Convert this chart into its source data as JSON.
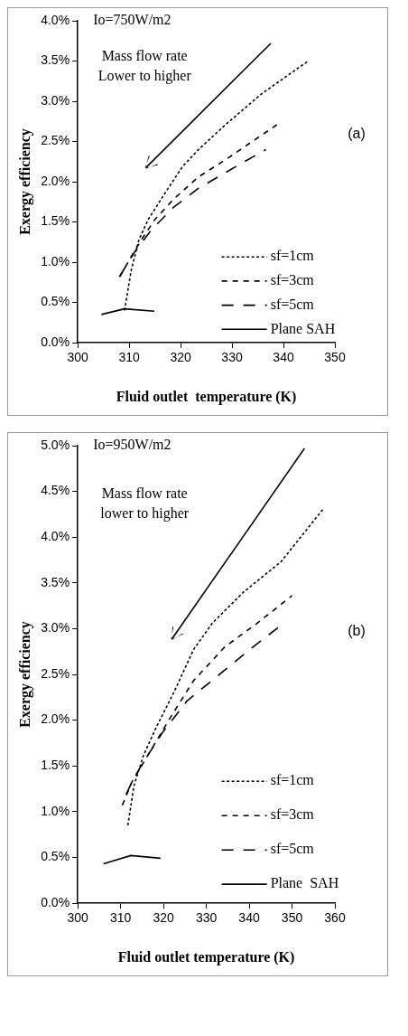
{
  "chart_data": [
    {
      "type": "line",
      "xlabel": "Fluid outlet  temperature (K)",
      "ylabel": "Exergy efficiency",
      "annotations": [
        "Io=750W/m2",
        "Mass flow rate\nLower to higher",
        "(a)"
      ],
      "xlim": [
        300,
        350
      ],
      "xticks": [
        300,
        310,
        320,
        330,
        340,
        350
      ],
      "ylim": [
        0,
        4
      ],
      "yticks": [
        {
          "value": 0,
          "label": "0.0%"
        },
        {
          "value": 0.5,
          "label": "0.5%"
        },
        {
          "value": 1,
          "label": "1.0%"
        },
        {
          "value": 1.5,
          "label": "1.5%"
        },
        {
          "value": 2,
          "label": "2.0%"
        },
        {
          "value": 2.5,
          "label": "2.5%"
        },
        {
          "value": 3,
          "label": "3.0%"
        },
        {
          "value": 3.5,
          "label": "3.5%"
        },
        {
          "value": 4,
          "label": "4.0%"
        }
      ],
      "grid": false,
      "legend": "bottom right",
      "marker": "none",
      "series": [
        {
          "name": "sf=1cm",
          "color": "#000000",
          "line_style": "dotted",
          "x": [
            309.1,
            310.4,
            311.9,
            313.7,
            317.4,
            320.4,
            323.5,
            328.4,
            335.7,
            344.8
          ],
          "values": [
            0.4,
            0.9,
            1.28,
            1.53,
            1.9,
            2.19,
            2.4,
            2.69,
            3.09,
            3.5
          ]
        },
        {
          "name": "sf=3cm",
          "color": "#000000",
          "line_style": "dashed",
          "x": [
            308.2,
            310.4,
            312.5,
            315,
            318.6,
            323.5,
            329.6,
            339
          ],
          "values": [
            0.82,
            1.07,
            1.29,
            1.53,
            1.78,
            2.06,
            2.31,
            2.72
          ]
        },
        {
          "name": "sf=5cm",
          "color": "#000000",
          "line_style": "dashed",
          "x": [
            308.1,
            311,
            314.3,
            318.6,
            323.5,
            330.8,
            336.6
          ],
          "values": [
            0.82,
            1.12,
            1.4,
            1.68,
            1.92,
            2.19,
            2.4
          ]
        },
        {
          "name": "Plane SAH",
          "color": "#000000",
          "line_style": "solid",
          "x": [
            304.6,
            309.1,
            314.9
          ],
          "values": [
            0.35,
            0.42,
            0.39
          ]
        }
      ]
    },
    {
      "type": "line",
      "xlabel": "Fluid outlet temperature (K)",
      "ylabel": "Exergy efficiency",
      "annotations": [
        "Io=950W/m2",
        "Mass flow rate\nlower to higher",
        "(b)"
      ],
      "xlim": [
        300,
        360
      ],
      "xticks": [
        300,
        310,
        320,
        330,
        340,
        350,
        360
      ],
      "ylim": [
        0,
        5
      ],
      "yticks": [
        {
          "value": 0,
          "label": "0.0%"
        },
        {
          "value": 0.5,
          "label": "0.5%"
        },
        {
          "value": 1,
          "label": "1.0%"
        },
        {
          "value": 1.5,
          "label": "1.5%"
        },
        {
          "value": 2,
          "label": "2.0%"
        },
        {
          "value": 2.5,
          "label": "2.5%"
        },
        {
          "value": 3,
          "label": "3.0%"
        },
        {
          "value": 3.5,
          "label": "3.5%"
        },
        {
          "value": 4,
          "label": "4.0%"
        },
        {
          "value": 4.5,
          "label": "4.5%"
        },
        {
          "value": 5,
          "label": "5.0%"
        }
      ],
      "grid": false,
      "legend": "bottom right",
      "marker": "none",
      "series": [
        {
          "name": "sf=1cm",
          "color": "#000000",
          "line_style": "dotted",
          "x": [
            311.7,
            313.1,
            315.3,
            318.2,
            322.6,
            327,
            331.4,
            338.7,
            347.4,
            357.3
          ],
          "values": [
            0.85,
            1.28,
            1.61,
            1.91,
            2.32,
            2.77,
            3.06,
            3.4,
            3.73,
            4.31
          ]
        },
        {
          "name": "sf=3cm",
          "color": "#000000",
          "line_style": "dashed",
          "x": [
            310.4,
            312.6,
            316.8,
            321.5,
            327,
            334.3,
            341.6,
            350
          ],
          "values": [
            1.07,
            1.32,
            1.65,
            2.02,
            2.43,
            2.8,
            3.05,
            3.36
          ]
        },
        {
          "name": "sf=5cm",
          "color": "#000000",
          "line_style": "dashed",
          "x": [
            311.3,
            312.8,
            315.3,
            319.7,
            325.5,
            333.6,
            340.1,
            346.7
          ],
          "values": [
            1.19,
            1.34,
            1.54,
            1.86,
            2.21,
            2.52,
            2.77,
            3.01
          ]
        },
        {
          "name": "Plane  SAH",
          "color": "#000000",
          "line_style": "solid",
          "x": [
            306,
            312.4,
            319.3
          ],
          "values": [
            0.43,
            0.52,
            0.49
          ]
        }
      ]
    }
  ]
}
